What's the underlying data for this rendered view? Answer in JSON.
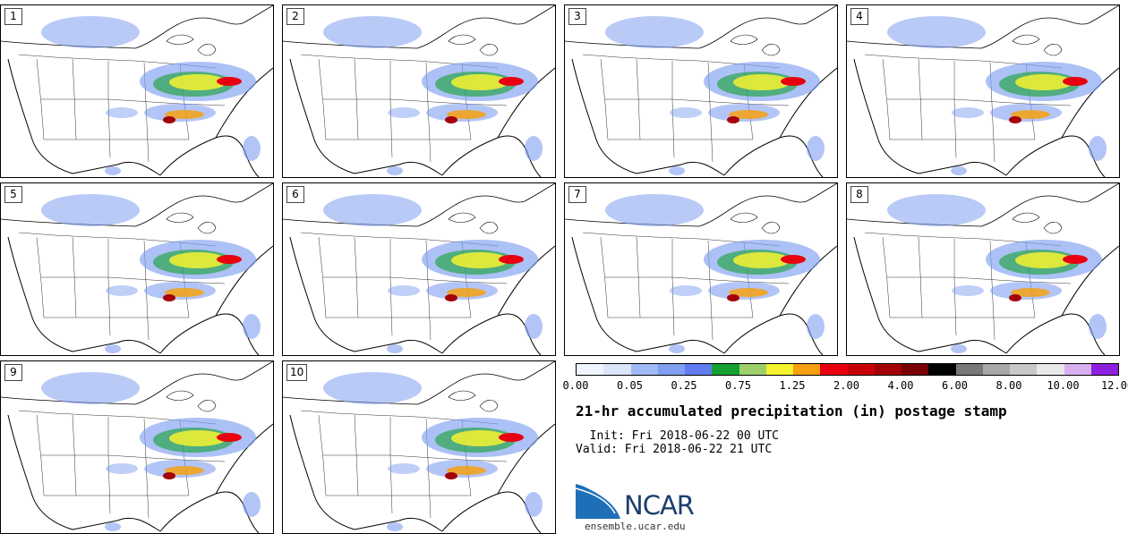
{
  "stamps": [
    "1",
    "2",
    "3",
    "4",
    "5",
    "6",
    "7",
    "8",
    "9",
    "10"
  ],
  "colorbar": {
    "colors": [
      "#f0f5ff",
      "#dbe6fa",
      "#9fbaf5",
      "#7f9ff0",
      "#607cf0",
      "#13a030",
      "#9ed06a",
      "#f5f230",
      "#f5a010",
      "#e80010",
      "#c80008",
      "#a40008",
      "#780006",
      "#000000",
      "#787878",
      "#a8a8a8",
      "#c8c8c8",
      "#e8e8e8",
      "#d8b0f0",
      "#9020e0"
    ],
    "ticks": [
      "0.00",
      "0.05",
      "0.25",
      "0.75",
      "1.25",
      "2.00",
      "4.00",
      "6.00",
      "8.00",
      "10.00",
      "12.00"
    ]
  },
  "title": "21-hr accumulated precipitation (in) postage stamp",
  "init": "  Init: Fri 2018-06-22 00 UTC",
  "valid": "Valid: Fri 2018-06-22 21 UTC",
  "logo": {
    "text": "NCAR",
    "site": "ensemble.ucar.edu"
  }
}
